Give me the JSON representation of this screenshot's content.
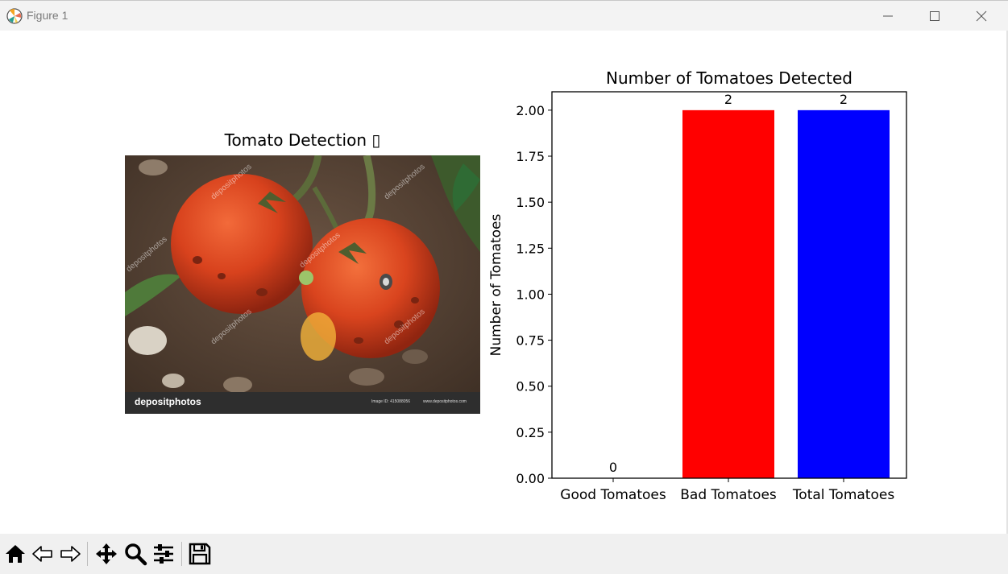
{
  "window": {
    "title": "Figure 1",
    "minimize_icon": "minimize-icon",
    "maximize_icon": "maximize-icon",
    "close_icon": "close-icon"
  },
  "image_panel": {
    "title": "Tomato Detection ▯",
    "watermark_logo": "depositphotos",
    "watermark_diag": "depositphotos",
    "watermark_id": "Image ID: 415088056",
    "watermark_url": "www.depositphotos.com"
  },
  "toolbar": {
    "items": [
      {
        "name": "home-icon"
      },
      {
        "name": "back-arrow-icon"
      },
      {
        "name": "forward-arrow-icon"
      },
      {
        "name": "pan-icon"
      },
      {
        "name": "zoom-icon"
      },
      {
        "name": "configure-subplots-icon"
      },
      {
        "name": "save-icon"
      }
    ]
  },
  "chart_data": {
    "type": "bar",
    "title": "Number of Tomatoes Detected",
    "xlabel": "",
    "ylabel": "Number of Tomatoes",
    "categories": [
      "Good Tomatoes",
      "Bad Tomatoes",
      "Total Tomatoes"
    ],
    "values": [
      0,
      2,
      2
    ],
    "data_labels": [
      "0",
      "2",
      "2"
    ],
    "colors": [
      "#008000",
      "#ff0000",
      "#0000ff"
    ],
    "ylim": [
      0,
      2.1
    ],
    "yticks": [
      0.0,
      0.25,
      0.5,
      0.75,
      1.0,
      1.25,
      1.5,
      1.75,
      2.0
    ],
    "ytick_labels": [
      "0.00",
      "0.25",
      "0.50",
      "0.75",
      "1.00",
      "1.25",
      "1.50",
      "1.75",
      "2.00"
    ],
    "grid": false,
    "legend": "none"
  }
}
